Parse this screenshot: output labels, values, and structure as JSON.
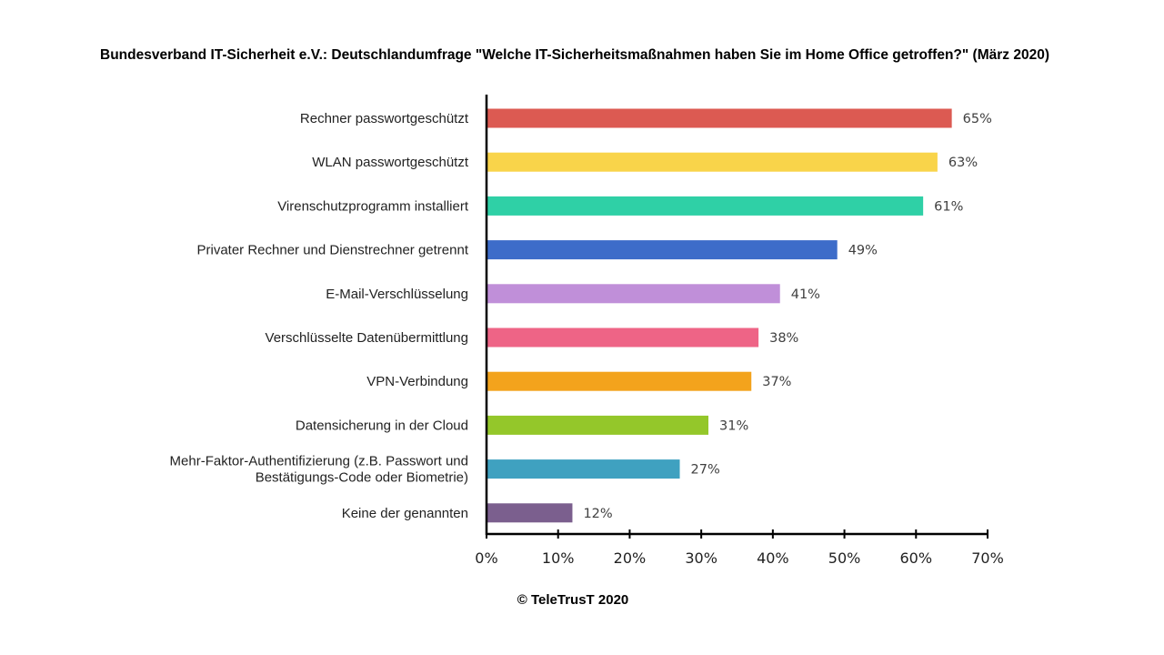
{
  "chart_data": {
    "type": "bar",
    "orientation": "horizontal",
    "title": "Bundesverband IT-Sicherheit e.V.: Deutschlandumfrage \"Welche IT-Sicherheitsmaßnahmen haben Sie im Home Office getroffen?\" (März 2020)",
    "categories": [
      [
        "Rechner passwortgeschützt"
      ],
      [
        "WLAN passwortgeschützt"
      ],
      [
        "Virenschutzprogramm installiert"
      ],
      [
        "Privater Rechner und Dienstrechner getrennt"
      ],
      [
        "E-Mail-Verschlüsselung"
      ],
      [
        "Verschlüsselte Datenübermittlung"
      ],
      [
        "VPN-Verbindung"
      ],
      [
        "Datensicherung in der Cloud"
      ],
      [
        "Mehr-Faktor-Authentifizierung (z.B. Passwort und",
        "Bestätigungs-Code oder Biometrie)"
      ],
      [
        "Keine der genannten"
      ]
    ],
    "values": [
      65,
      63,
      61,
      49,
      41,
      38,
      37,
      31,
      27,
      12
    ],
    "value_labels": [
      "65%",
      "63%",
      "61%",
      "49%",
      "41%",
      "38%",
      "37%",
      "31%",
      "27%",
      "12%"
    ],
    "colors": [
      "#dc5a52",
      "#f9d44a",
      "#2fd0a6",
      "#3d6cc9",
      "#c08fd9",
      "#ee6486",
      "#f3a31c",
      "#94c72a",
      "#3fa1c0",
      "#7b5f8e"
    ],
    "xlim": [
      0,
      70
    ],
    "xticks": [
      0,
      10,
      20,
      30,
      40,
      50,
      60,
      70
    ],
    "xtick_labels": [
      "0%",
      "10%",
      "20%",
      "30%",
      "40%",
      "50%",
      "60%",
      "70%"
    ],
    "xlabel": "",
    "ylabel": "",
    "grid": false,
    "legend": "none"
  },
  "footer": {
    "copyright": "© TeleTrusT 2020"
  }
}
